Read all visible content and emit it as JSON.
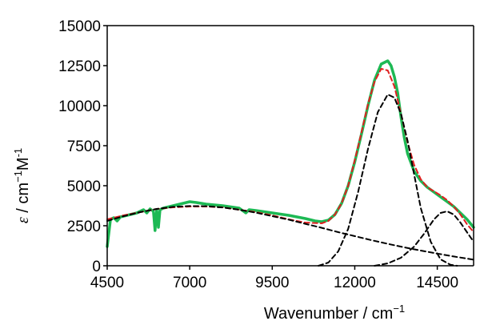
{
  "chart_data": {
    "type": "line",
    "xlabel": "Wavenumber / cm",
    "xlabel_sup": "−1",
    "ylabel_symbol": "ε",
    "ylabel_text": " / cm",
    "ylabel_sup1": "−1",
    "ylabel_text2": "M",
    "ylabel_sup2": "-1",
    "xlim": [
      4500,
      15600
    ],
    "ylim": [
      0,
      15000
    ],
    "x_ticks": [
      4500,
      7000,
      9500,
      12000,
      14500
    ],
    "y_ticks": [
      0,
      2500,
      5000,
      7500,
      10000,
      12500,
      15000
    ],
    "grid": false,
    "legend": "none",
    "series": [
      {
        "style": "solid",
        "color": "#1db954",
        "x": [
          4500,
          4600,
          4700,
          4800,
          4900,
          5000,
          5200,
          5400,
          5600,
          5700,
          5800,
          5900,
          5950,
          6000,
          6050,
          6100,
          6200,
          6400,
          6600,
          6800,
          7000,
          7200,
          7500,
          8000,
          8500,
          8700,
          8800,
          9000,
          9500,
          10000,
          10500,
          10800,
          11000,
          11200,
          11400,
          11600,
          11800,
          12000,
          12200,
          12400,
          12600,
          12800,
          13000,
          13100,
          13200,
          13300,
          13400,
          13500,
          13600,
          13800,
          14000,
          14200,
          14400,
          14600,
          14800,
          15000,
          15200,
          15400,
          15600
        ],
        "y": [
          1200,
          2900,
          3000,
          2800,
          3050,
          3100,
          3200,
          3300,
          3500,
          3300,
          3550,
          3400,
          2200,
          3500,
          2400,
          3500,
          3600,
          3700,
          3800,
          3900,
          4000,
          3950,
          3850,
          3750,
          3600,
          3300,
          3500,
          3450,
          3300,
          3150,
          2950,
          2800,
          2750,
          2850,
          3200,
          3900,
          5000,
          6500,
          8200,
          10000,
          11600,
          12600,
          12800,
          12500,
          11800,
          10800,
          9300,
          8000,
          7000,
          5900,
          5300,
          4900,
          4600,
          4300,
          4000,
          3700,
          3300,
          2900,
          2400
        ]
      },
      {
        "style": "dashed",
        "color": "#e02020",
        "x": [
          4500,
          5000,
          5500,
          6000,
          6500,
          7000,
          7500,
          8000,
          8500,
          9000,
          9500,
          10000,
          10500,
          11000,
          11200,
          11400,
          11600,
          11800,
          12000,
          12200,
          12400,
          12600,
          12800,
          13000,
          13200,
          13400,
          13600,
          13800,
          14000,
          14200,
          14400,
          14600,
          14800,
          15000,
          15200,
          15400,
          15600
        ],
        "y": [
          2900,
          3150,
          3350,
          3550,
          3650,
          3700,
          3700,
          3650,
          3500,
          3350,
          3150,
          2900,
          2700,
          2650,
          2800,
          3200,
          3900,
          5000,
          6600,
          8300,
          10100,
          11500,
          12300,
          12200,
          11200,
          9500,
          7700,
          6300,
          5400,
          4900,
          4650,
          4400,
          4100,
          3700,
          3200,
          2600,
          2100
        ]
      },
      {
        "style": "dashed",
        "color": "#000000",
        "x": [
          4500,
          5000,
          5500,
          6000,
          6500,
          7000,
          7500,
          8000,
          8500,
          9000,
          9500,
          10000,
          10500,
          11000,
          11500,
          12000,
          12500,
          13000,
          13500,
          14000,
          14500,
          15000,
          15600
        ],
        "y": [
          2800,
          3100,
          3350,
          3550,
          3680,
          3730,
          3720,
          3640,
          3500,
          3320,
          3100,
          2880,
          2620,
          2370,
          2100,
          1850,
          1600,
          1370,
          1150,
          950,
          760,
          580,
          380
        ]
      },
      {
        "style": "dashed",
        "color": "#000000",
        "x": [
          10900,
          11200,
          11500,
          11800,
          12100,
          12400,
          12700,
          13000,
          13200,
          13400,
          13600,
          13800,
          14000,
          14300,
          14600,
          14900,
          15100
        ],
        "y": [
          0,
          200,
          900,
          2300,
          4600,
          7300,
          9600,
          10700,
          10500,
          9500,
          7800,
          5700,
          3600,
          1500,
          400,
          60,
          0
        ]
      },
      {
        "style": "dashed",
        "color": "#000000",
        "x": [
          12600,
          13000,
          13400,
          13800,
          14100,
          14400,
          14600,
          14800,
          15000,
          15200,
          15400,
          15600
        ],
        "y": [
          0,
          150,
          500,
          1200,
          2000,
          2900,
          3300,
          3400,
          3200,
          2700,
          2100,
          1500
        ]
      }
    ]
  }
}
